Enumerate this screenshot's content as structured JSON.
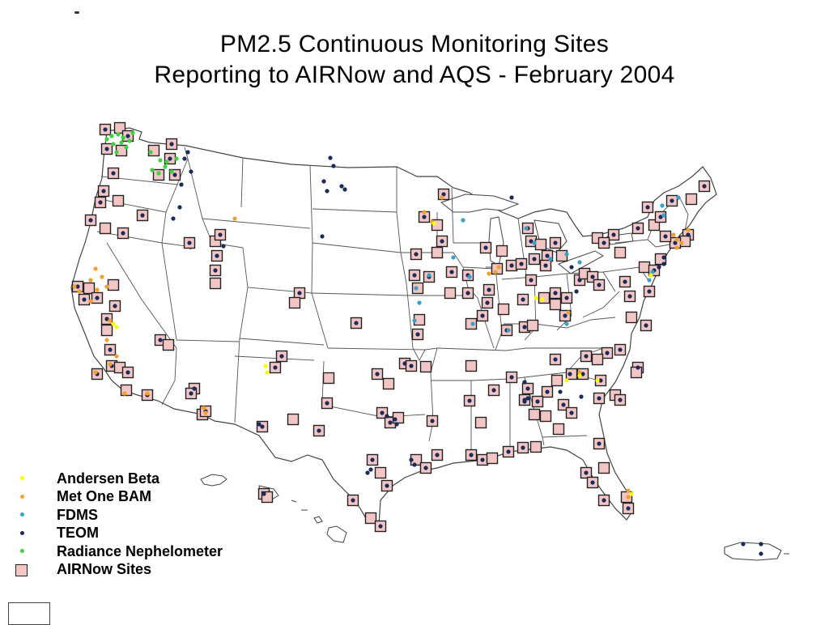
{
  "title": {
    "line1": "PM2.5 Continuous Monitoring Sites",
    "line2": "Reporting to AIRNow and AQS - February 2004"
  },
  "colors": {
    "andersen_beta": "#ffff00",
    "met_one_bam": "#f0a030",
    "fdms": "#3aa0c8",
    "teom": "#1a2b5a",
    "radiance_nephelometer": "#40d040",
    "airnow_fill": "#f3c6c6",
    "airnow_border": "#222222",
    "state_lines": "#555555"
  },
  "legend": {
    "items": [
      {
        "label": "Andersen Beta",
        "symbol": "dot",
        "color_key": "andersen_beta"
      },
      {
        "label": "Met One BAM",
        "symbol": "dot",
        "color_key": "met_one_bam"
      },
      {
        "label": "FDMS",
        "symbol": "dot",
        "color_key": "fdms"
      },
      {
        "label": "TEOM",
        "symbol": "dot",
        "color_key": "teom"
      },
      {
        "label": "Radiance Nephelometer",
        "symbol": "dot",
        "color_key": "radiance_nephelometer"
      },
      {
        "label": "AIRNow Sites",
        "symbol": "square",
        "color_key": "airnow_fill"
      }
    ]
  }
}
